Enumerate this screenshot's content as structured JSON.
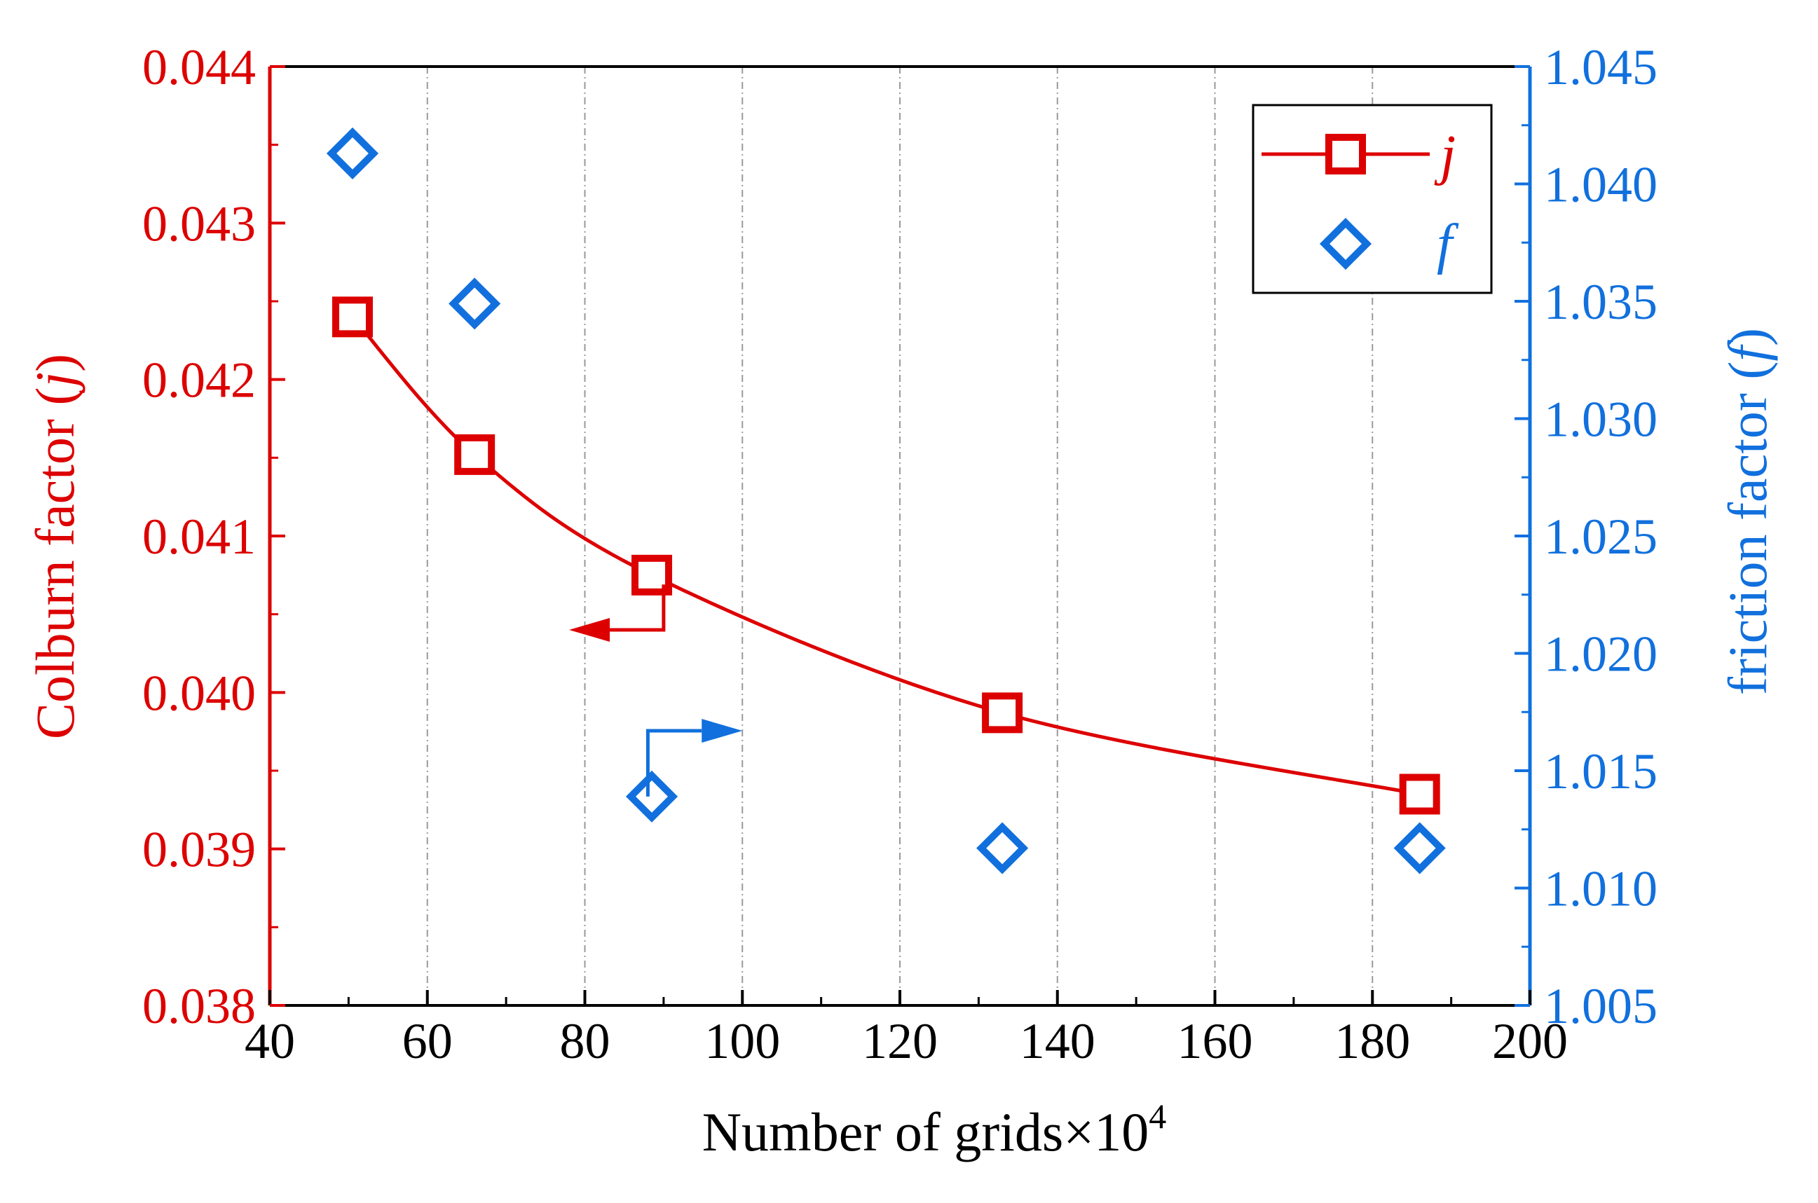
{
  "chart_data": {
    "type": "scatter",
    "title": "",
    "xlabel": "Number of grids×10",
    "xlabel_superscript": "4",
    "ylabel_left_prefix": "Colburn factor (",
    "ylabel_left_symbol": "j",
    "ylabel_left_suffix": ")",
    "ylabel_right_prefix": "friction factor (",
    "ylabel_right_symbol": "f",
    "ylabel_right_suffix": ")",
    "xlim": [
      40,
      200
    ],
    "ylim_left": [
      0.038,
      0.044
    ],
    "ylim_right": [
      1.005,
      1.045
    ],
    "x_ticks": [
      "40",
      "60",
      "80",
      "100",
      "120",
      "140",
      "160",
      "180",
      "200"
    ],
    "y_left_ticks": [
      "0.038",
      "0.039",
      "0.040",
      "0.041",
      "0.042",
      "0.043",
      "0.044"
    ],
    "y_right_ticks": [
      "1.005",
      "1.010",
      "1.015",
      "1.020",
      "1.025",
      "1.030",
      "1.035",
      "1.040",
      "1.045"
    ],
    "grid": "vertical dashed",
    "legend_position": "top-right",
    "series": [
      {
        "name": "j",
        "axis": "left",
        "marker": "square",
        "line": "smooth",
        "color": "#dd0000",
        "x": [
          50.5,
          66,
          88.5,
          133,
          186
        ],
        "y": [
          0.0424,
          0.04152,
          0.04075,
          0.03987,
          0.03935
        ]
      },
      {
        "name": "f",
        "axis": "right",
        "marker": "diamond",
        "line": "none",
        "color": "#1170dd",
        "x": [
          50.5,
          66,
          88.5,
          133,
          186
        ],
        "y": [
          1.0413,
          1.0349,
          1.0139,
          1.0117,
          1.0117
        ]
      }
    ],
    "annotations": [
      {
        "name": "arrow-left",
        "color": "#dd0000",
        "from_x": 90,
        "from_y": 0.04069,
        "to_x": 78,
        "to_y": 0.0404,
        "direction": "left",
        "axis": "left"
      },
      {
        "name": "arrow-right",
        "color": "#1170dd",
        "from_x": 88,
        "from_y": 1.0139,
        "to_x": 100,
        "to_y": 1.0167,
        "direction": "right",
        "axis": "right"
      }
    ]
  }
}
